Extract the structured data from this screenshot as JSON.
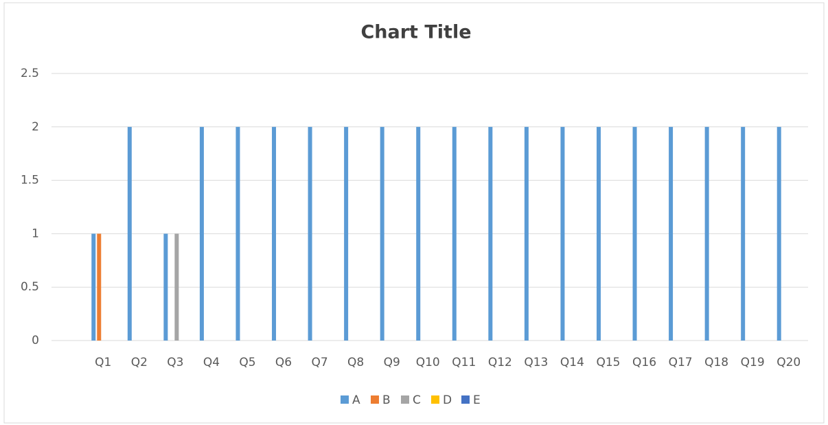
{
  "chart_data": {
    "type": "bar",
    "title": "Chart Title",
    "categories": [
      "Q1",
      "Q2",
      "Q3",
      "Q4",
      "Q5",
      "Q6",
      "Q7",
      "Q8",
      "Q9",
      "Q10",
      "Q11",
      "Q12",
      "Q13",
      "Q14",
      "Q15",
      "Q16",
      "Q17",
      "Q18",
      "Q19",
      "Q20"
    ],
    "series": [
      {
        "name": "A",
        "color": "#5b9bd5",
        "values": [
          1,
          2,
          1,
          2,
          2,
          2,
          2,
          2,
          2,
          2,
          2,
          2,
          2,
          2,
          2,
          2,
          2,
          2,
          2,
          2
        ]
      },
      {
        "name": "B",
        "color": "#ed7d31",
        "values": [
          1,
          0,
          0,
          0,
          0,
          0,
          0,
          0,
          0,
          0,
          0,
          0,
          0,
          0,
          0,
          0,
          0,
          0,
          0,
          0
        ]
      },
      {
        "name": "C",
        "color": "#a5a5a5",
        "values": [
          0,
          0,
          1,
          0,
          0,
          0,
          0,
          0,
          0,
          0,
          0,
          0,
          0,
          0,
          0,
          0,
          0,
          0,
          0,
          0
        ]
      },
      {
        "name": "D",
        "color": "#ffc000",
        "values": [
          0,
          0,
          0,
          0,
          0,
          0,
          0,
          0,
          0,
          0,
          0,
          0,
          0,
          0,
          0,
          0,
          0,
          0,
          0,
          0
        ]
      },
      {
        "name": "E",
        "color": "#4472c4",
        "values": [
          0,
          0,
          0,
          0,
          0,
          0,
          0,
          0,
          0,
          0,
          0,
          0,
          0,
          0,
          0,
          0,
          0,
          0,
          0,
          0
        ]
      }
    ],
    "ylim": [
      0,
      2.5
    ],
    "yticks": [
      0,
      0.5,
      1,
      1.5,
      2,
      2.5
    ],
    "grid": true,
    "legend": "bottom"
  }
}
